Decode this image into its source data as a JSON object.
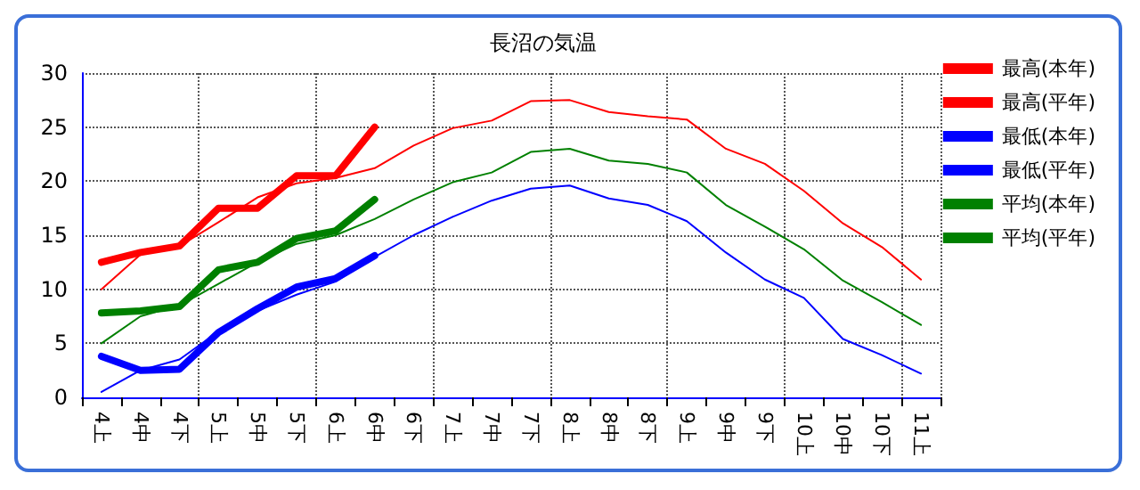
{
  "chart_data": {
    "type": "line",
    "title": "長沼の気温",
    "categories": [
      "4上",
      "4中",
      "4下",
      "5上",
      "5中",
      "5下",
      "6上",
      "6中",
      "6下",
      "7上",
      "7中",
      "7下",
      "8上",
      "8中",
      "8下",
      "9上",
      "9中",
      "9下",
      "10上",
      "10中",
      "10下",
      "11上"
    ],
    "series": [
      {
        "name": "最高(本年)",
        "color": "#ff0000",
        "values": [
          12.5,
          13.4,
          14,
          17.5,
          17.5,
          20.5,
          20.5,
          25,
          null,
          null,
          null,
          null,
          null,
          null,
          null,
          null,
          null,
          null,
          null,
          null,
          null,
          null
        ]
      },
      {
        "name": "最高(平年)",
        "color": "#ff0000",
        "values": [
          10,
          13.2,
          14,
          16.2,
          18.5,
          19.8,
          20.3,
          21.2,
          23.3,
          24.9,
          25.6,
          27.4,
          27.5,
          26.4,
          26,
          25.7,
          23,
          21.6,
          19.1,
          16.1,
          13.9,
          10.9
        ]
      },
      {
        "name": "最低(本年)",
        "color": "#0000ff",
        "values": [
          3.8,
          2.5,
          2.6,
          6,
          8.2,
          10.2,
          11,
          13.1,
          null,
          null,
          null,
          null,
          null,
          null,
          null,
          null,
          null,
          null,
          null,
          null,
          null,
          null
        ]
      },
      {
        "name": "最低(平年)",
        "color": "#0000ff",
        "values": [
          0.5,
          2.5,
          3.5,
          6.1,
          8,
          9.5,
          10.7,
          13,
          15,
          16.7,
          18.2,
          19.3,
          19.6,
          18.4,
          17.8,
          16.3,
          13.4,
          10.9,
          9.2,
          5.4,
          3.9,
          2.2
        ]
      },
      {
        "name": "平均(本年)",
        "color": "#008000",
        "values": [
          7.8,
          8,
          8.4,
          11.8,
          12.5,
          14.7,
          15.4,
          18.3,
          null,
          null,
          null,
          null,
          null,
          null,
          null,
          null,
          null,
          null,
          null,
          null,
          null,
          null
        ]
      },
      {
        "name": "平均(平年)",
        "color": "#008000",
        "values": [
          5,
          7.5,
          8.5,
          10.5,
          12.5,
          14.2,
          15,
          16.5,
          18.3,
          19.9,
          20.8,
          22.7,
          23,
          21.9,
          21.6,
          20.8,
          17.8,
          15.8,
          13.7,
          10.8,
          8.8,
          6.7
        ]
      }
    ],
    "ylim": [
      0,
      30
    ],
    "yticks": [
      0,
      5,
      10,
      15,
      20,
      25,
      30
    ],
    "grid": true,
    "legend": "right",
    "marker": "none",
    "line_style": "solid"
  }
}
